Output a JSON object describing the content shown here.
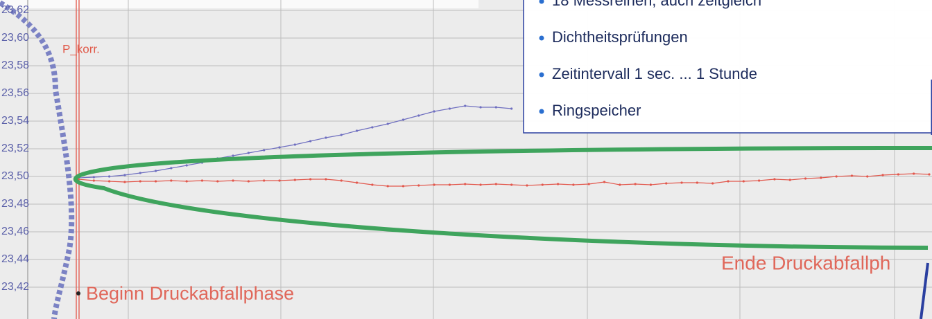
{
  "chart_data": {
    "type": "line",
    "ylim": [
      23.397,
      23.6275
    ],
    "yticks": [
      {
        "value": 23.62,
        "label": "23,62"
      },
      {
        "value": 23.6,
        "label": "23,60"
      },
      {
        "value": 23.58,
        "label": "23,58"
      },
      {
        "value": 23.56,
        "label": "23,56"
      },
      {
        "value": 23.54,
        "label": "23,54"
      },
      {
        "value": 23.52,
        "label": "23,52"
      },
      {
        "value": 23.5,
        "label": "23,50"
      },
      {
        "value": 23.48,
        "label": "23,48"
      },
      {
        "value": 23.46,
        "label": "23,46"
      },
      {
        "value": 23.44,
        "label": "23,44"
      },
      {
        "value": 23.42,
        "label": "23,42"
      }
    ],
    "grid": true,
    "series": [
      {
        "color": "#6f6fc0",
        "values": [
          23.499,
          23.4995,
          23.5,
          23.501,
          23.5025,
          23.504,
          23.506,
          23.508,
          23.51,
          23.513,
          23.515,
          23.517,
          23.519,
          23.521,
          23.523,
          23.5255,
          23.528,
          23.53,
          23.533,
          23.5355,
          23.538,
          23.541,
          23.544,
          23.547,
          23.549,
          23.551,
          23.55,
          23.55,
          23.549,
          null,
          null,
          null,
          null,
          null,
          null,
          null,
          null,
          null,
          null,
          null,
          null,
          null,
          null,
          null,
          null,
          null,
          null,
          null,
          null,
          null,
          null,
          null,
          null,
          null,
          null,
          null
        ]
      },
      {
        "color": "#e2574c",
        "values": [
          23.498,
          23.497,
          23.4965,
          23.496,
          23.4965,
          23.4965,
          23.497,
          23.4965,
          23.497,
          23.4965,
          23.497,
          23.4965,
          23.497,
          23.497,
          23.4975,
          23.498,
          23.498,
          23.497,
          23.4955,
          23.494,
          23.493,
          23.493,
          23.4935,
          23.494,
          23.494,
          23.4945,
          23.494,
          23.4945,
          23.494,
          23.4935,
          23.494,
          23.4945,
          23.494,
          23.4945,
          23.496,
          23.494,
          23.4945,
          23.494,
          23.495,
          23.4955,
          23.4955,
          23.495,
          23.4965,
          23.4965,
          23.497,
          23.498,
          23.4975,
          23.4985,
          23.499,
          23.5,
          23.5005,
          23.5,
          23.501,
          23.5015,
          23.502,
          23.5015
        ]
      }
    ],
    "annotations": [
      "P_korr.",
      "Beginn Druckabfallphase",
      "Ende Druckabfallph"
    ]
  },
  "info_box": {
    "bullets": [
      "18 Messreihen, auch zeitgleich",
      "Dichtheitsprüfungen",
      "Zeitintervall 1 sec. ... 1 Stunde",
      "Ringspeicher"
    ]
  }
}
